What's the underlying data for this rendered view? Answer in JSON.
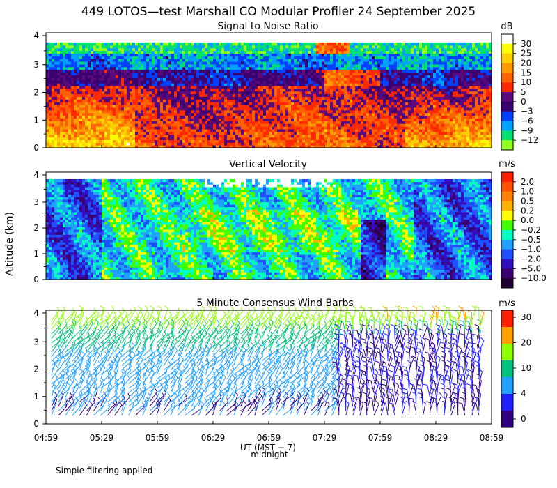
{
  "title": "449 LOTOS—test Marshall CO Modular Profiler 24 September 2025",
  "ylabel": "Altitude (km)",
  "xlabel": "UT (MST − 7)",
  "midnight_label": "midnight",
  "footnote": "Simple filtering applied",
  "x_ticks": [
    "04:59",
    "05:29",
    "05:59",
    "06:29",
    "06:59",
    "07:29",
    "07:59",
    "08:29",
    "08:59"
  ],
  "y_ticks": [
    "0",
    "1",
    "2",
    "3",
    "4"
  ],
  "chart_data": [
    {
      "type": "heatmap",
      "title": "Signal to Noise Ratio",
      "unit": "dB",
      "ylim": [
        0,
        4
      ],
      "colorbar_labels": [
        "30",
        "25",
        "20",
        "15",
        "10",
        "5",
        "0",
        "−3",
        "−6",
        "−9",
        "−12"
      ],
      "colorbar_colors": [
        "#ffffff",
        "#ffff00",
        "#ffd000",
        "#ff9a00",
        "#ff6000",
        "#ff2a00",
        "#5a0a7a",
        "#3a0070",
        "#0040ff",
        "#00a0ff",
        "#00e070",
        "#90ff20"
      ]
    },
    {
      "type": "heatmap",
      "title": "Vertical Velocity",
      "unit": "m/s",
      "ylim": [
        0,
        4
      ],
      "colorbar_labels": [
        "2.0",
        "1.0",
        "0.5",
        "0.2",
        "0.0",
        "−0.2",
        "−0.5",
        "−1.0",
        "−2.0",
        "−5.0",
        "−10.0"
      ],
      "colorbar_colors": [
        "#ff2000",
        "#ff5000",
        "#ff8000",
        "#ffb000",
        "#ffff00",
        "#40ff00",
        "#00ffc0",
        "#20a0ff",
        "#2050ff",
        "#3010c0",
        "#3a0070",
        "#200030"
      ]
    },
    {
      "type": "wind_barbs",
      "title": "5 Minute Consensus Wind Barbs",
      "unit": "m/s",
      "ylim": [
        0,
        4
      ],
      "colorbar_labels": [
        "30",
        "20",
        "10",
        "4",
        "0"
      ],
      "colorbar_colors": [
        "#ff2000",
        "#ffa000",
        "#90ff00",
        "#00c080",
        "#20a0ff",
        "#2020ff",
        "#300080"
      ]
    }
  ]
}
